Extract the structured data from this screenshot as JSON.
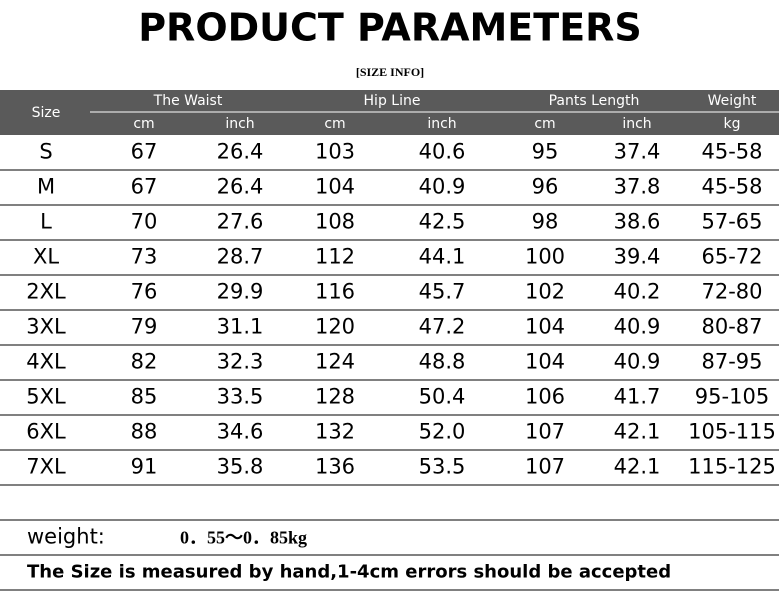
{
  "header": {
    "title": "PRODUCT PARAMETERS",
    "subtitle": "[SIZE INFO]"
  },
  "table": {
    "size_header": "Size",
    "groups": [
      "The Waist",
      "Hip Line",
      "Pants Length",
      "Weight"
    ],
    "units": [
      "cm",
      "inch",
      "cm",
      "inch",
      "cm",
      "inch",
      "kg"
    ],
    "rows": [
      [
        "S",
        "67",
        "26.4",
        "103",
        "40.6",
        "95",
        "37.4",
        "45-58"
      ],
      [
        "M",
        "67",
        "26.4",
        "104",
        "40.9",
        "96",
        "37.8",
        "45-58"
      ],
      [
        "L",
        "70",
        "27.6",
        "108",
        "42.5",
        "98",
        "38.6",
        "57-65"
      ],
      [
        "XL",
        "73",
        "28.7",
        "112",
        "44.1",
        "100",
        "39.4",
        "65-72"
      ],
      [
        "2XL",
        "76",
        "29.9",
        "116",
        "45.7",
        "102",
        "40.2",
        "72-80"
      ],
      [
        "3XL",
        "79",
        "31.1",
        "120",
        "47.2",
        "104",
        "40.9",
        "80-87"
      ],
      [
        "4XL",
        "82",
        "32.3",
        "124",
        "48.8",
        "104",
        "40.9",
        "87-95"
      ],
      [
        "5XL",
        "85",
        "33.5",
        "128",
        "50.4",
        "106",
        "41.7",
        "95-105"
      ],
      [
        "6XL",
        "88",
        "34.6",
        "132",
        "52.0",
        "107",
        "42.1",
        "105-115"
      ],
      [
        "7XL",
        "91",
        "35.8",
        "136",
        "53.5",
        "107",
        "42.1",
        "115-125"
      ]
    ]
  },
  "footer": {
    "weight_label": "weight:",
    "weight_value": "0．55～0．85kg",
    "note": "The Size is measured by hand,1-4cm errors should be accepted"
  }
}
